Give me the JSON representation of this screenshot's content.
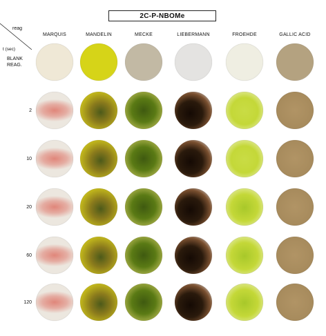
{
  "title": "2C-P-NBOMe",
  "corner": {
    "reag": "reag",
    "t": "t (sec)"
  },
  "columns": [
    "MARQUIS",
    "MANDELIN",
    "MECKE",
    "LIEBERMANN",
    "FROEHDE",
    "GALLIC ACID"
  ],
  "rows": [
    "BLANK\nREAG.",
    "2",
    "10",
    "20",
    "60",
    "120"
  ],
  "colors": {
    "MARQUIS": {
      "rim": "#ece7df",
      "blank": "#efe8d6",
      "reaction": "#e0867a"
    },
    "MANDELIN": {
      "rim": "#e6e3dc",
      "blank": "#d6d418",
      "reaction": "#8a7a1c"
    },
    "MECKE": {
      "rim": "#e3e1dc",
      "blank": "#c2b9a4",
      "reaction": "#5a7a14"
    },
    "LIEBERMANN": {
      "rim": "#e8e6e4",
      "blank": "#e4e3e1",
      "reaction": "#2a1a0c"
    },
    "FROEHDE": {
      "rim": "#e5e3de",
      "blank": "#efeee2",
      "reaction": "#c4d838"
    },
    "GALLIC ACID": {
      "rim": "#d8cdbb",
      "blank": "#b4a280",
      "reaction": "#b19465"
    }
  }
}
